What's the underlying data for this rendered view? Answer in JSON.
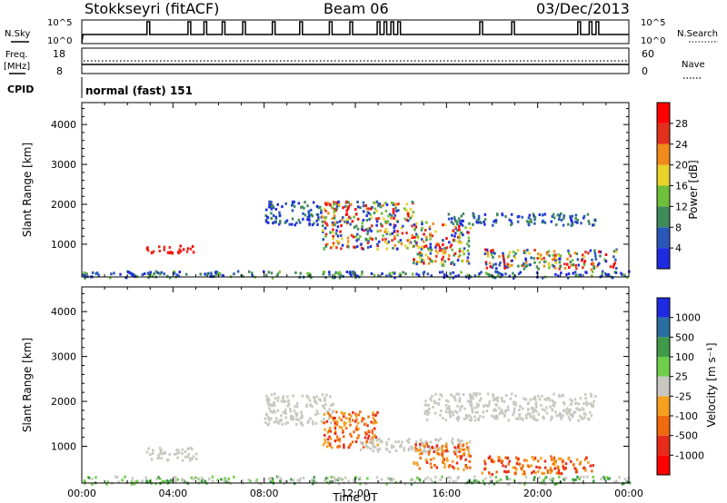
{
  "header": {
    "station": "Stokkseyri (fitACF)",
    "beam": "Beam 06",
    "date": "03/Dec/2013"
  },
  "sky_panel": {
    "left_label": "N.Sky",
    "right_label": "N.Search",
    "left_ticks": [
      "10^5",
      "10^0"
    ],
    "right_ticks": [
      "10^5",
      "10^0"
    ]
  },
  "freq_panel": {
    "left_label_line1": "Freq.",
    "left_label_line2": "[MHz]",
    "left_ticks": [
      "18",
      "8"
    ],
    "right_label": "Nave",
    "right_ticks": [
      "60",
      "0"
    ]
  },
  "cpid": {
    "label": "CPID",
    "value": "normal (fast) 151"
  },
  "chart_data": [
    {
      "type": "heatmap",
      "panel": "power",
      "ylabel": "Slant Range [km]",
      "ylim": [
        180,
        4550
      ],
      "yticks": [
        "1000",
        "2000",
        "3000",
        "4000"
      ],
      "xlim_hours": [
        0,
        24
      ],
      "xtick_labels": [
        "00:00",
        "04:00",
        "08:00",
        "12:00",
        "16:00",
        "20:00",
        "00:00"
      ],
      "colorbar_label": "Power [dB]",
      "colorbar_ticks": [
        "4",
        "8",
        "12",
        "16",
        "20",
        "24",
        "28"
      ],
      "colorbar_colors": [
        "#1f2be0",
        "#2a58b8",
        "#3f8a5a",
        "#6fbf3a",
        "#e8d22a",
        "#f08a1a",
        "#e3301c",
        "#ff0000"
      ],
      "echo_regions": [
        {
          "hours": [
            0.0,
            24.0
          ],
          "range_km": [
            180,
            350
          ],
          "class": "speckle"
        },
        {
          "hours": [
            2.8,
            5.0
          ],
          "range_km": [
            800,
            1000
          ],
          "class": "strong"
        },
        {
          "hours": [
            8.0,
            10.5
          ],
          "range_km": [
            1500,
            2100
          ],
          "class": "weak"
        },
        {
          "hours": [
            10.5,
            14.5
          ],
          "range_km": [
            900,
            2100
          ],
          "class": "moderate"
        },
        {
          "hours": [
            14.5,
            17.0
          ],
          "range_km": [
            500,
            1600
          ],
          "class": "moderate"
        },
        {
          "hours": [
            17.5,
            23.5
          ],
          "range_km": [
            400,
            900
          ],
          "class": "moderate"
        },
        {
          "hours": [
            16.0,
            22.5
          ],
          "range_km": [
            1500,
            1800
          ],
          "class": "weak"
        }
      ]
    },
    {
      "type": "heatmap",
      "panel": "velocity",
      "ylabel": "Slant Range [km]",
      "ylim": [
        180,
        4550
      ],
      "yticks": [
        "1000",
        "2000",
        "3000",
        "4000"
      ],
      "xlim_hours": [
        0,
        24
      ],
      "xtick_labels": [
        "00:00",
        "04:00",
        "08:00",
        "12:00",
        "16:00",
        "20:00",
        "00:00"
      ],
      "xlabel": "Time UT",
      "colorbar_label": "Velocity [m s⁻¹]",
      "colorbar_ticks": [
        "1000",
        "500",
        "100",
        "25",
        "-25",
        "-100",
        "-500",
        "-1000"
      ],
      "colorbar_colors": [
        "#1f2be0",
        "#2a6ea0",
        "#3f9a4a",
        "#6fcf4a",
        "#c8c8c0",
        "#f5a020",
        "#f06a10",
        "#e82a18",
        "#ff0000"
      ],
      "echo_regions": [
        {
          "hours": [
            0.0,
            24.0
          ],
          "range_km": [
            180,
            350
          ],
          "class": "speckle"
        },
        {
          "hours": [
            2.8,
            5.0
          ],
          "range_km": [
            700,
            1000
          ],
          "class": "ground"
        },
        {
          "hours": [
            8.0,
            11.0
          ],
          "range_km": [
            1500,
            2200
          ],
          "class": "ground"
        },
        {
          "hours": [
            10.5,
            13.0
          ],
          "range_km": [
            1000,
            1800
          ],
          "class": "away"
        },
        {
          "hours": [
            12.0,
            17.0
          ],
          "range_km": [
            900,
            1200
          ],
          "class": "ground"
        },
        {
          "hours": [
            14.5,
            17.0
          ],
          "range_km": [
            500,
            1100
          ],
          "class": "away"
        },
        {
          "hours": [
            17.5,
            22.5
          ],
          "range_km": [
            400,
            800
          ],
          "class": "away"
        },
        {
          "hours": [
            15.0,
            22.5
          ],
          "range_km": [
            1600,
            2200
          ],
          "class": "ground"
        }
      ]
    }
  ],
  "sky_noise": {
    "spike_hours": [
      2.9,
      4.7,
      5.4,
      6.2,
      7.1,
      8.4,
      9.6,
      10.9,
      11.8,
      13.0,
      13.3,
      13.6,
      13.9,
      17.5,
      18.9,
      21.8,
      22.3,
      22.6
    ]
  },
  "colors": {
    "axis": "#000000",
    "background": "#ffffff"
  }
}
